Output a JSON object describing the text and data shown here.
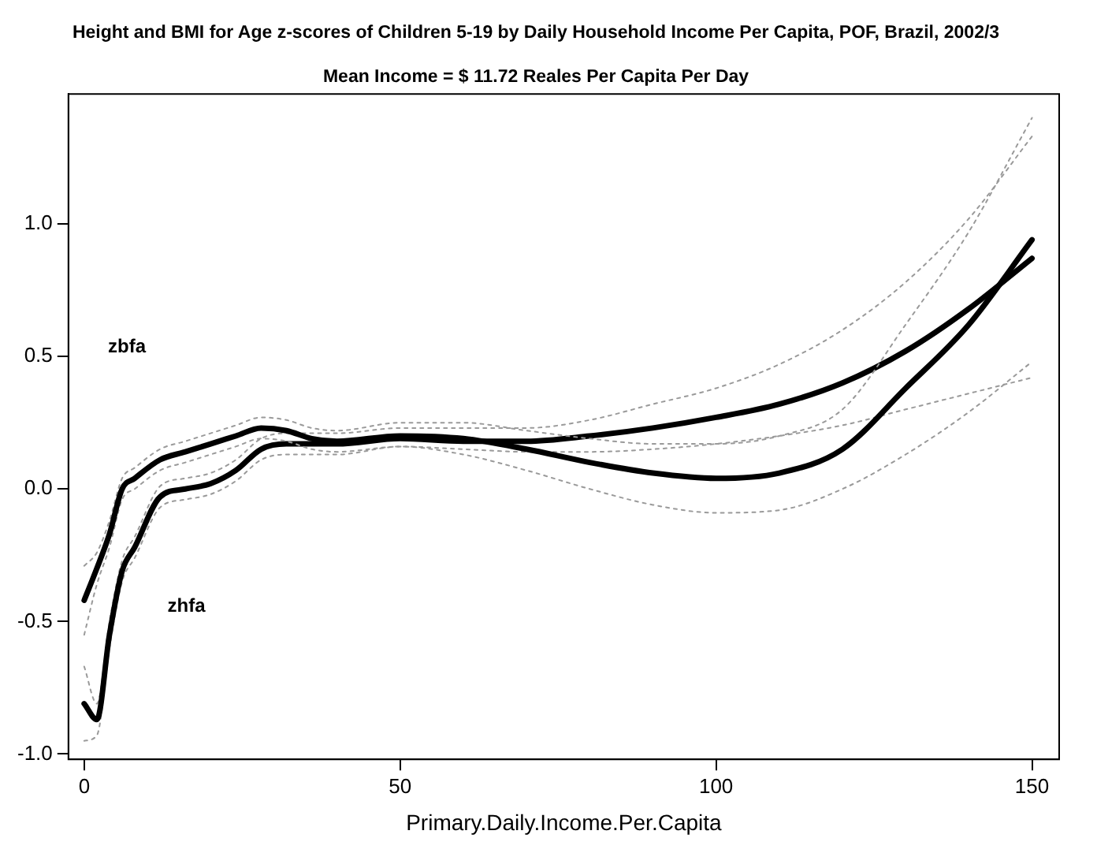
{
  "chart_data": {
    "type": "line",
    "title": "Height and BMI for Age z-scores of Children 5-19 by Daily Household Income Per Capita, POF, Brazil, 2002/3",
    "subtitle": "Mean Income = $ 11.72 Reales Per Capita Per Day",
    "xlabel": "Primary.Daily.Income.Per.Capita",
    "x": [
      0,
      2,
      4,
      6,
      8,
      12,
      16,
      20,
      24,
      28,
      32,
      36,
      40,
      50,
      60,
      70,
      80,
      90,
      100,
      110,
      120,
      130,
      140,
      150
    ],
    "series": [
      {
        "color": "#000000",
        "line_style": "solid",
        "values": [
          -0.42,
          -0.3,
          -0.17,
          0.0,
          0.04,
          0.11,
          0.14,
          0.17,
          0.2,
          0.23,
          0.22,
          0.19,
          0.18,
          0.2,
          0.19,
          0.15,
          0.1,
          0.06,
          0.04,
          0.06,
          0.15,
          0.38,
          0.62,
          0.94
        ]
      },
      {
        "color": "#9a9a9a",
        "line_style": "dotted",
        "values": [
          -0.55,
          -0.36,
          -0.22,
          -0.04,
          0.0,
          0.07,
          0.1,
          0.13,
          0.16,
          0.19,
          0.18,
          0.15,
          0.14,
          0.16,
          0.13,
          0.07,
          0.0,
          -0.06,
          -0.09,
          -0.08,
          0.0,
          0.13,
          0.29,
          0.48
        ]
      },
      {
        "color": "#9a9a9a",
        "line_style": "dotted",
        "values": [
          -0.29,
          -0.24,
          -0.12,
          0.04,
          0.08,
          0.15,
          0.18,
          0.21,
          0.24,
          0.27,
          0.26,
          0.23,
          0.22,
          0.25,
          0.25,
          0.22,
          0.19,
          0.17,
          0.17,
          0.2,
          0.3,
          0.62,
          0.97,
          1.4
        ]
      },
      {
        "color": "#000000",
        "line_style": "solid",
        "values": [
          -0.81,
          -0.87,
          -0.55,
          -0.31,
          -0.22,
          -0.03,
          0.0,
          0.02,
          0.07,
          0.15,
          0.17,
          0.17,
          0.17,
          0.19,
          0.18,
          0.18,
          0.2,
          0.23,
          0.27,
          0.32,
          0.4,
          0.52,
          0.68,
          0.87
        ]
      },
      {
        "color": "#9a9a9a",
        "line_style": "dotted",
        "values": [
          -0.95,
          -0.93,
          -0.6,
          -0.35,
          -0.26,
          -0.07,
          -0.04,
          -0.02,
          0.03,
          0.11,
          0.13,
          0.13,
          0.13,
          0.16,
          0.15,
          0.14,
          0.14,
          0.15,
          0.17,
          0.2,
          0.24,
          0.3,
          0.36,
          0.42
        ]
      },
      {
        "color": "#9a9a9a",
        "line_style": "dotted",
        "values": [
          -0.67,
          -0.81,
          -0.5,
          -0.27,
          -0.18,
          0.01,
          0.04,
          0.06,
          0.11,
          0.19,
          0.21,
          0.21,
          0.21,
          0.23,
          0.23,
          0.23,
          0.26,
          0.32,
          0.38,
          0.47,
          0.6,
          0.78,
          1.02,
          1.33
        ]
      }
    ],
    "annotations": [
      "zbfa",
      "zhfa"
    ],
    "xlim": [
      -2.5,
      154.3
    ],
    "ylim": [
      -1.02,
      1.49
    ],
    "xticks": [
      0,
      50,
      100,
      150
    ],
    "yticks": [
      {
        "value": -1,
        "label": "-1.0"
      },
      {
        "value": -0.5,
        "label": "-0.5"
      },
      {
        "value": 0,
        "label": "0.0"
      },
      {
        "value": 0.5,
        "label": "0.5"
      },
      {
        "value": 1,
        "label": "1.0"
      }
    ],
    "grid": false,
    "legend": false,
    "marker": "none"
  }
}
